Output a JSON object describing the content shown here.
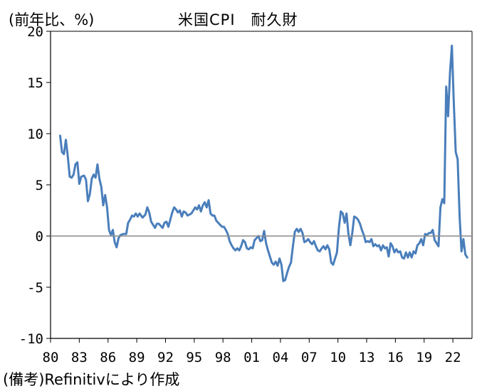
{
  "header": {
    "unit": "(前年比、%)",
    "title": "米国CPI　耐久財"
  },
  "footer": {
    "source": "(備考)Refinitivにより作成"
  },
  "colors": {
    "line": "#4a7ebb",
    "zero_line": "#8c8c8c",
    "axis": "#000000"
  },
  "chart_data": {
    "type": "line",
    "title": "米国CPI　耐久財",
    "ylabel": "(前年比、%)",
    "xlabel": "",
    "x_ticks": [
      "80",
      "83",
      "86",
      "89",
      "92",
      "95",
      "98",
      "01",
      "04",
      "07",
      "10",
      "13",
      "16",
      "19",
      "22"
    ],
    "y_ticks": [
      "20",
      "15",
      "10",
      "5",
      "0",
      "-5",
      "-10"
    ],
    "xlim": [
      1980.0,
      2024.0
    ],
    "ylim": [
      -10,
      20
    ],
    "grid": false,
    "series": [
      {
        "values": [
          [
            1981.0,
            9.8
          ],
          [
            1981.2,
            8.2
          ],
          [
            1981.4,
            8.0
          ],
          [
            1981.6,
            9.4
          ],
          [
            1981.8,
            7.8
          ],
          [
            1982.0,
            5.8
          ],
          [
            1982.2,
            5.7
          ],
          [
            1982.4,
            6.0
          ],
          [
            1982.6,
            7.0
          ],
          [
            1982.8,
            7.2
          ],
          [
            1983.0,
            5.1
          ],
          [
            1983.2,
            5.8
          ],
          [
            1983.5,
            5.9
          ],
          [
            1983.7,
            5.5
          ],
          [
            1983.9,
            3.4
          ],
          [
            1984.1,
            4.1
          ],
          [
            1984.3,
            5.6
          ],
          [
            1984.5,
            6.0
          ],
          [
            1984.7,
            5.7
          ],
          [
            1984.9,
            7.0
          ],
          [
            1985.1,
            5.6
          ],
          [
            1985.3,
            4.8
          ],
          [
            1985.5,
            3.0
          ],
          [
            1985.7,
            4.0
          ],
          [
            1985.9,
            2.8
          ],
          [
            1986.1,
            0.6
          ],
          [
            1986.3,
            0.1
          ],
          [
            1986.5,
            0.6
          ],
          [
            1986.7,
            -0.6
          ],
          [
            1986.9,
            -1.1
          ],
          [
            1987.1,
            -0.2
          ],
          [
            1987.3,
            0.1
          ],
          [
            1987.6,
            0.2
          ],
          [
            1987.9,
            0.2
          ],
          [
            1988.1,
            1.3
          ],
          [
            1988.3,
            1.6
          ],
          [
            1988.5,
            2.0
          ],
          [
            1988.7,
            1.9
          ],
          [
            1988.9,
            2.2
          ],
          [
            1989.1,
            1.9
          ],
          [
            1989.3,
            2.2
          ],
          [
            1989.6,
            1.8
          ],
          [
            1989.9,
            2.1
          ],
          [
            1990.1,
            2.8
          ],
          [
            1990.3,
            2.3
          ],
          [
            1990.5,
            1.4
          ],
          [
            1990.7,
            1.1
          ],
          [
            1990.9,
            0.8
          ],
          [
            1991.1,
            1.2
          ],
          [
            1991.3,
            1.2
          ],
          [
            1991.5,
            1.0
          ],
          [
            1991.7,
            0.8
          ],
          [
            1991.9,
            1.3
          ],
          [
            1992.1,
            1.4
          ],
          [
            1992.3,
            0.9
          ],
          [
            1992.5,
            1.6
          ],
          [
            1992.7,
            2.3
          ],
          [
            1992.9,
            2.8
          ],
          [
            1993.1,
            2.6
          ],
          [
            1993.3,
            2.3
          ],
          [
            1993.5,
            2.5
          ],
          [
            1993.7,
            1.9
          ],
          [
            1993.9,
            2.4
          ],
          [
            1994.1,
            2.3
          ],
          [
            1994.3,
            2.0
          ],
          [
            1994.5,
            2.1
          ],
          [
            1994.7,
            2.2
          ],
          [
            1994.9,
            2.5
          ],
          [
            1995.1,
            2.8
          ],
          [
            1995.3,
            2.6
          ],
          [
            1995.5,
            3.0
          ],
          [
            1995.7,
            2.4
          ],
          [
            1995.9,
            3.0
          ],
          [
            1996.1,
            3.3
          ],
          [
            1996.3,
            2.8
          ],
          [
            1996.5,
            3.5
          ],
          [
            1996.7,
            2.2
          ],
          [
            1996.9,
            2.0
          ],
          [
            1997.1,
            2.0
          ],
          [
            1997.3,
            1.5
          ],
          [
            1997.5,
            1.3
          ],
          [
            1997.7,
            1.1
          ],
          [
            1997.9,
            0.9
          ],
          [
            1998.1,
            0.9
          ],
          [
            1998.3,
            0.6
          ],
          [
            1998.5,
            0.2
          ],
          [
            1998.7,
            -0.5
          ],
          [
            1998.9,
            -0.9
          ],
          [
            1999.1,
            -1.2
          ],
          [
            1999.3,
            -1.4
          ],
          [
            1999.5,
            -1.2
          ],
          [
            1999.7,
            -1.4
          ],
          [
            1999.9,
            -1.0
          ],
          [
            2000.1,
            -0.4
          ],
          [
            2000.3,
            -0.6
          ],
          [
            2000.5,
            -1.2
          ],
          [
            2000.7,
            -1.3
          ],
          [
            2000.9,
            -1.1
          ],
          [
            2001.1,
            -1.2
          ],
          [
            2001.3,
            -0.4
          ],
          [
            2001.5,
            -0.2
          ],
          [
            2001.7,
            0.0
          ],
          [
            2001.9,
            -0.5
          ],
          [
            2002.1,
            -0.4
          ],
          [
            2002.3,
            0.5
          ],
          [
            2002.5,
            -0.7
          ],
          [
            2002.7,
            -1.4
          ],
          [
            2002.9,
            -2.0
          ],
          [
            2003.1,
            -2.6
          ],
          [
            2003.3,
            -2.8
          ],
          [
            2003.5,
            -2.5
          ],
          [
            2003.7,
            -2.9
          ],
          [
            2003.9,
            -2.2
          ],
          [
            2004.1,
            -2.8
          ],
          [
            2004.3,
            -4.4
          ],
          [
            2004.5,
            -4.3
          ],
          [
            2004.7,
            -3.6
          ],
          [
            2004.9,
            -3.0
          ],
          [
            2005.1,
            -2.6
          ],
          [
            2005.3,
            -1.0
          ],
          [
            2005.5,
            0.4
          ],
          [
            2005.7,
            0.7
          ],
          [
            2005.9,
            0.4
          ],
          [
            2006.1,
            0.7
          ],
          [
            2006.3,
            0.3
          ],
          [
            2006.5,
            -0.6
          ],
          [
            2006.7,
            -0.5
          ],
          [
            2006.9,
            -0.3
          ],
          [
            2007.1,
            -0.6
          ],
          [
            2007.3,
            -0.8
          ],
          [
            2007.5,
            -0.5
          ],
          [
            2007.7,
            -1.0
          ],
          [
            2007.9,
            -1.4
          ],
          [
            2008.1,
            -1.5
          ],
          [
            2008.3,
            -1.2
          ],
          [
            2008.5,
            -1.0
          ],
          [
            2008.7,
            -1.3
          ],
          [
            2008.9,
            -0.9
          ],
          [
            2009.1,
            -1.3
          ],
          [
            2009.3,
            -2.6
          ],
          [
            2009.5,
            -2.8
          ],
          [
            2009.7,
            -2.2
          ],
          [
            2009.9,
            -1.6
          ],
          [
            2010.1,
            0.8
          ],
          [
            2010.3,
            2.4
          ],
          [
            2010.5,
            2.2
          ],
          [
            2010.7,
            1.3
          ],
          [
            2010.9,
            2.2
          ],
          [
            2011.1,
            0.2
          ],
          [
            2011.3,
            -0.9
          ],
          [
            2011.5,
            0.3
          ],
          [
            2011.7,
            1.9
          ],
          [
            2011.9,
            1.8
          ],
          [
            2012.1,
            1.6
          ],
          [
            2012.3,
            1.2
          ],
          [
            2012.5,
            0.6
          ],
          [
            2012.7,
            0.1
          ],
          [
            2012.9,
            -0.6
          ],
          [
            2013.1,
            -0.5
          ],
          [
            2013.3,
            -0.6
          ],
          [
            2013.5,
            -0.3
          ],
          [
            2013.7,
            -1.0
          ],
          [
            2013.9,
            -0.8
          ],
          [
            2014.1,
            -1.0
          ],
          [
            2014.3,
            -0.9
          ],
          [
            2014.5,
            -1.4
          ],
          [
            2014.7,
            -0.9
          ],
          [
            2014.9,
            -1.2
          ],
          [
            2015.1,
            -1.1
          ],
          [
            2015.3,
            -2.0
          ],
          [
            2015.5,
            -0.7
          ],
          [
            2015.7,
            -1.0
          ],
          [
            2015.9,
            -1.6
          ],
          [
            2016.1,
            -1.3
          ],
          [
            2016.3,
            -1.6
          ],
          [
            2016.5,
            -1.5
          ],
          [
            2016.7,
            -2.1
          ],
          [
            2016.9,
            -2.2
          ],
          [
            2017.1,
            -1.6
          ],
          [
            2017.3,
            -2.1
          ],
          [
            2017.5,
            -1.6
          ],
          [
            2017.7,
            -2.1
          ],
          [
            2017.9,
            -1.5
          ],
          [
            2018.1,
            -1.7
          ],
          [
            2018.3,
            -0.9
          ],
          [
            2018.5,
            -0.7
          ],
          [
            2018.7,
            -0.3
          ],
          [
            2018.9,
            -0.9
          ],
          [
            2019.1,
            0.2
          ],
          [
            2019.3,
            0.1
          ],
          [
            2019.5,
            0.3
          ],
          [
            2019.7,
            0.3
          ],
          [
            2019.9,
            0.6
          ],
          [
            2020.1,
            -0.4
          ],
          [
            2020.3,
            -0.7
          ],
          [
            2020.5,
            -1.0
          ],
          [
            2020.7,
            2.8
          ],
          [
            2020.9,
            3.6
          ],
          [
            2021.1,
            3.2
          ],
          [
            2021.3,
            14.6
          ],
          [
            2021.5,
            11.7
          ],
          [
            2021.7,
            16.0
          ],
          [
            2021.9,
            18.6
          ],
          [
            2022.1,
            13.0
          ],
          [
            2022.3,
            8.2
          ],
          [
            2022.5,
            7.5
          ],
          [
            2022.7,
            2.0
          ],
          [
            2022.9,
            -1.5
          ],
          [
            2023.1,
            -0.3
          ],
          [
            2023.3,
            -1.8
          ],
          [
            2023.5,
            -2.1
          ]
        ]
      }
    ]
  }
}
